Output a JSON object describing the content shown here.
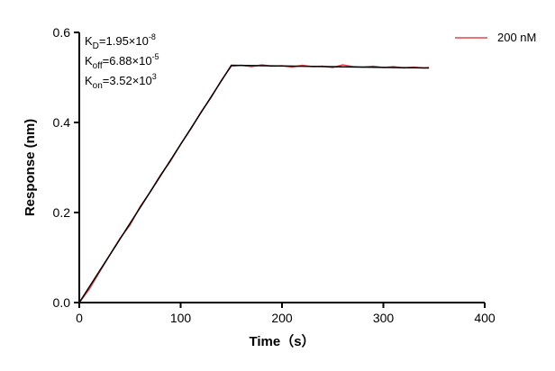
{
  "chart_data": {
    "type": "line",
    "xlabel": "Time（s）",
    "ylabel": "Response (nm)",
    "xlim": [
      0,
      400
    ],
    "ylim": [
      0,
      0.6
    ],
    "xticks": [
      0,
      100,
      200,
      300,
      400
    ],
    "yticks": [
      {
        "value": 0,
        "label": "0.0"
      },
      0.2,
      0.4,
      0.6
    ],
    "legend": "upper right",
    "series": [
      {
        "name": "200 nM",
        "color": "#e0474c",
        "x": [
          0,
          10,
          20,
          30,
          40,
          50,
          60,
          70,
          80,
          90,
          100,
          110,
          120,
          130,
          140,
          150,
          160,
          170,
          180,
          190,
          200,
          210,
          220,
          230,
          240,
          250,
          260,
          270,
          280,
          290,
          300,
          310,
          320,
          330,
          340,
          345
        ],
        "values": [
          0.0,
          0.03,
          0.068,
          0.105,
          0.142,
          0.172,
          0.213,
          0.246,
          0.283,
          0.314,
          0.352,
          0.385,
          0.423,
          0.455,
          0.493,
          0.525,
          0.527,
          0.524,
          0.528,
          0.525,
          0.526,
          0.523,
          0.527,
          0.524,
          0.525,
          0.522,
          0.528,
          0.524,
          0.523,
          0.525,
          0.522,
          0.524,
          0.521,
          0.523,
          0.521,
          0.522
        ]
      }
    ],
    "fit": {
      "color": "#000000",
      "x": [
        0,
        150,
        345
      ],
      "values": [
        0,
        0.527,
        0.521
      ]
    },
    "annotations": [
      {
        "symbol": "K",
        "subscript": "D",
        "text": "=1.95×10",
        "exponent": "-8"
      },
      {
        "symbol": "K",
        "subscript": "off",
        "text": "=6.88×10",
        "exponent": "-5"
      },
      {
        "symbol": "K",
        "subscript": "on",
        "text": "=3.52×10",
        "exponent": "3"
      }
    ]
  }
}
